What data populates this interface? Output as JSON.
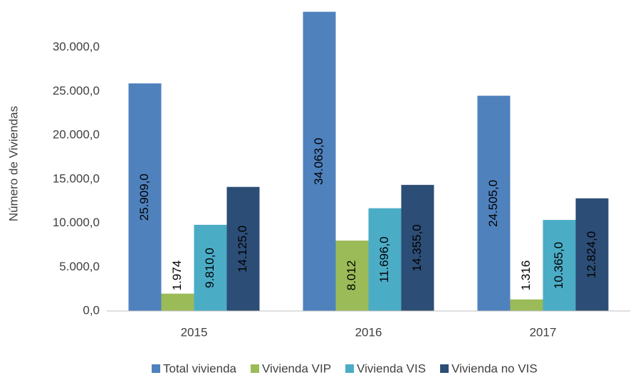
{
  "chart_data": {
    "type": "bar",
    "ylabel": "Número de Viviendas",
    "categories": [
      "2015",
      "2016",
      "2017"
    ],
    "series": [
      {
        "name": "Total vivienda",
        "color": "#4f81bd",
        "values": [
          25909,
          34063,
          24505
        ],
        "value_labels": [
          "25.909,0",
          "34.063,0",
          "24.505,0"
        ]
      },
      {
        "name": "Vivienda VIP",
        "color": "#9bbb59",
        "values": [
          1974,
          8012,
          1316
        ],
        "value_labels": [
          "1.974",
          "8.012",
          "1.316"
        ]
      },
      {
        "name": "Vivienda VIS",
        "color": "#4bacc6",
        "values": [
          9810,
          11696,
          10365
        ],
        "value_labels": [
          "9.810,0",
          "11.696,0",
          "10.365,0"
        ]
      },
      {
        "name": "Vivienda no VIS",
        "color": "#2c4d75",
        "values": [
          14125,
          14355,
          12824
        ],
        "value_labels": [
          "14.125,0",
          "14.355,0",
          "12.824,0"
        ]
      }
    ],
    "ylim": [
      0,
      35000
    ],
    "yticks": [
      {
        "value": 0,
        "label": "0,0"
      },
      {
        "value": 5000,
        "label": "5.000,0"
      },
      {
        "value": 10000,
        "label": "10.000,0"
      },
      {
        "value": 15000,
        "label": "15.000,0"
      },
      {
        "value": 20000,
        "label": "20.000,0"
      },
      {
        "value": 25000,
        "label": "25.000,0"
      },
      {
        "value": 30000,
        "label": "30.000,0"
      }
    ],
    "grid": false,
    "legend": "bottom"
  }
}
